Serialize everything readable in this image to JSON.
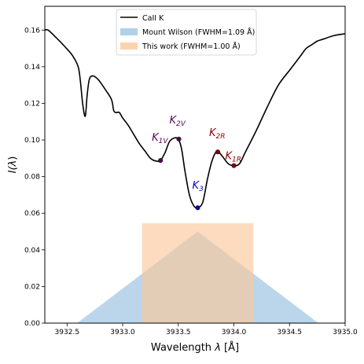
{
  "chart_data": {
    "type": "line",
    "xlabel_main": "Wavelength",
    "xlabel_var": "λ",
    "xlabel_unit": "[Å]",
    "ylabel_main": "I(",
    "ylabel_var": "λ",
    "ylabel_end": ")",
    "xlim": [
      3932.3,
      3935.0
    ],
    "ylim": [
      0.0,
      0.173
    ],
    "xticks": [
      3932.5,
      3933.0,
      3933.5,
      3934.0,
      3934.5,
      3935.0
    ],
    "xtick_labels": [
      "3932.5",
      "3933.0",
      "3933.5",
      "3934.0",
      "3934.5",
      "3935.0"
    ],
    "yticks": [
      0.0,
      0.02,
      0.04,
      0.06,
      0.08,
      0.1,
      0.12,
      0.14,
      0.16
    ],
    "ytick_labels": [
      "0.00",
      "0.02",
      "0.04",
      "0.06",
      "0.08",
      "0.10",
      "0.12",
      "0.14",
      "0.16"
    ],
    "legend_position": "top-center",
    "series": [
      {
        "name": "CaII K",
        "kind": "line",
        "color": "#000000",
        "x": [
          3932.3,
          3932.33,
          3932.4,
          3932.48,
          3932.55,
          3932.6,
          3932.62,
          3932.64,
          3932.66,
          3932.67,
          3932.68,
          3932.7,
          3932.73,
          3932.78,
          3932.85,
          3932.9,
          3932.92,
          3932.94,
          3932.97,
          3933.0,
          3933.05,
          3933.1,
          3933.15,
          3933.2,
          3933.25,
          3933.3,
          3933.34,
          3933.38,
          3933.42,
          3933.46,
          3933.5,
          3933.53,
          3933.56,
          3933.6,
          3933.64,
          3933.675,
          3933.72,
          3933.76,
          3933.8,
          3933.84,
          3933.87,
          3933.91,
          3933.95,
          3934.0,
          3934.05,
          3934.1,
          3934.2,
          3934.3,
          3934.4,
          3934.5,
          3934.55,
          3934.6,
          3934.65,
          3934.7,
          3934.75,
          3934.8,
          3934.9,
          3935.0
        ],
        "y": [
          0.16,
          0.16,
          0.156,
          0.151,
          0.146,
          0.14,
          0.132,
          0.12,
          0.113,
          0.116,
          0.124,
          0.133,
          0.135,
          0.133,
          0.127,
          0.122,
          0.116,
          0.115,
          0.115,
          0.112,
          0.108,
          0.103,
          0.098,
          0.094,
          0.09,
          0.0885,
          0.0888,
          0.093,
          0.099,
          0.101,
          0.1005,
          0.095,
          0.083,
          0.07,
          0.064,
          0.063,
          0.066,
          0.078,
          0.088,
          0.0935,
          0.093,
          0.09,
          0.087,
          0.086,
          0.087,
          0.093,
          0.105,
          0.118,
          0.13,
          0.138,
          0.142,
          0.146,
          0.15,
          0.152,
          0.154,
          0.155,
          0.157,
          0.158
        ]
      },
      {
        "name": "Mount Wilson (FWHM=1.09 Å)",
        "kind": "triangle",
        "color": "#9ec4e2",
        "x": [
          3932.59,
          3933.675,
          3934.76
        ],
        "y": [
          0.0,
          0.05,
          0.0
        ]
      },
      {
        "name": "This work (FWHM=1.00 Å)",
        "kind": "rectangle",
        "color": "#fbc89b",
        "x": [
          3933.175,
          3934.175
        ],
        "y": [
          0.0,
          0.0545
        ]
      }
    ],
    "points": [
      {
        "label": "K",
        "sub": "1V",
        "x": 3933.34,
        "y": 0.0888,
        "color": "#5b005b"
      },
      {
        "label": "K",
        "sub": "2V",
        "x": 3933.505,
        "y": 0.1005,
        "color": "#5b005b"
      },
      {
        "label": "K",
        "sub": "3",
        "x": 3933.675,
        "y": 0.063,
        "color": "#0000cc"
      },
      {
        "label": "K",
        "sub": "2R",
        "x": 3933.855,
        "y": 0.0935,
        "color": "#8b0000"
      },
      {
        "label": "K",
        "sub": "1R",
        "x": 3934.0,
        "y": 0.086,
        "color": "#8b0000"
      }
    ]
  }
}
